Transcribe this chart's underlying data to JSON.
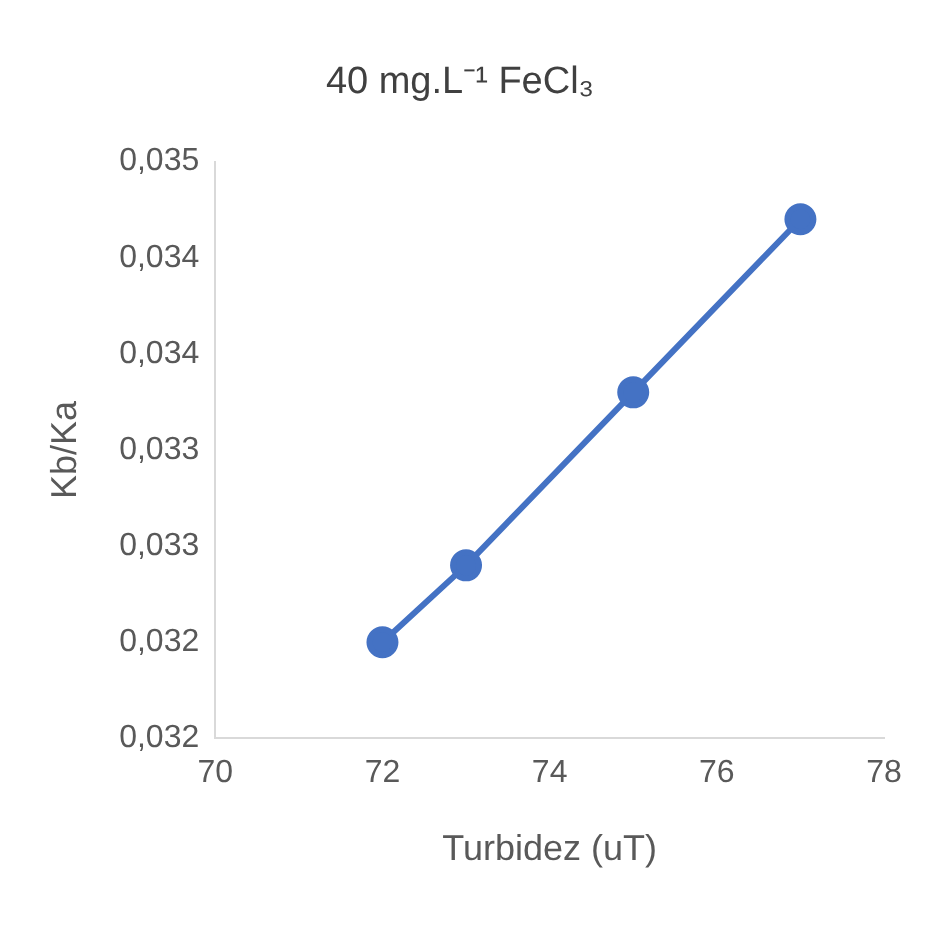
{
  "chart_data": {
    "type": "line",
    "title": "40 mg.L⁻¹ FeCl₃",
    "xlabel": "Turbidez (uT)",
    "ylabel": "Kb/Ka",
    "x": [
      72,
      73,
      75,
      77
    ],
    "series": [
      {
        "color": "#4472c4",
        "values": [
          0.032,
          0.0324,
          0.0333,
          0.0342
        ]
      }
    ],
    "xlim": [
      70,
      78
    ],
    "xticks": [
      70,
      72,
      74,
      76,
      78
    ],
    "ylim": [
      0.0315,
      0.0345
    ],
    "yticks": [
      {
        "value": 0.0315,
        "label": "0,032"
      },
      {
        "value": 0.032,
        "label": "0,032"
      },
      {
        "value": 0.0325,
        "label": "0,033"
      },
      {
        "value": 0.033,
        "label": "0,033"
      },
      {
        "value": 0.0335,
        "label": "0,034"
      },
      {
        "value": 0.034,
        "label": "0,034"
      },
      {
        "value": 0.0345,
        "label": "0,035"
      }
    ],
    "grid": false,
    "legend": false,
    "marker": "circle",
    "line_style": "solid"
  }
}
